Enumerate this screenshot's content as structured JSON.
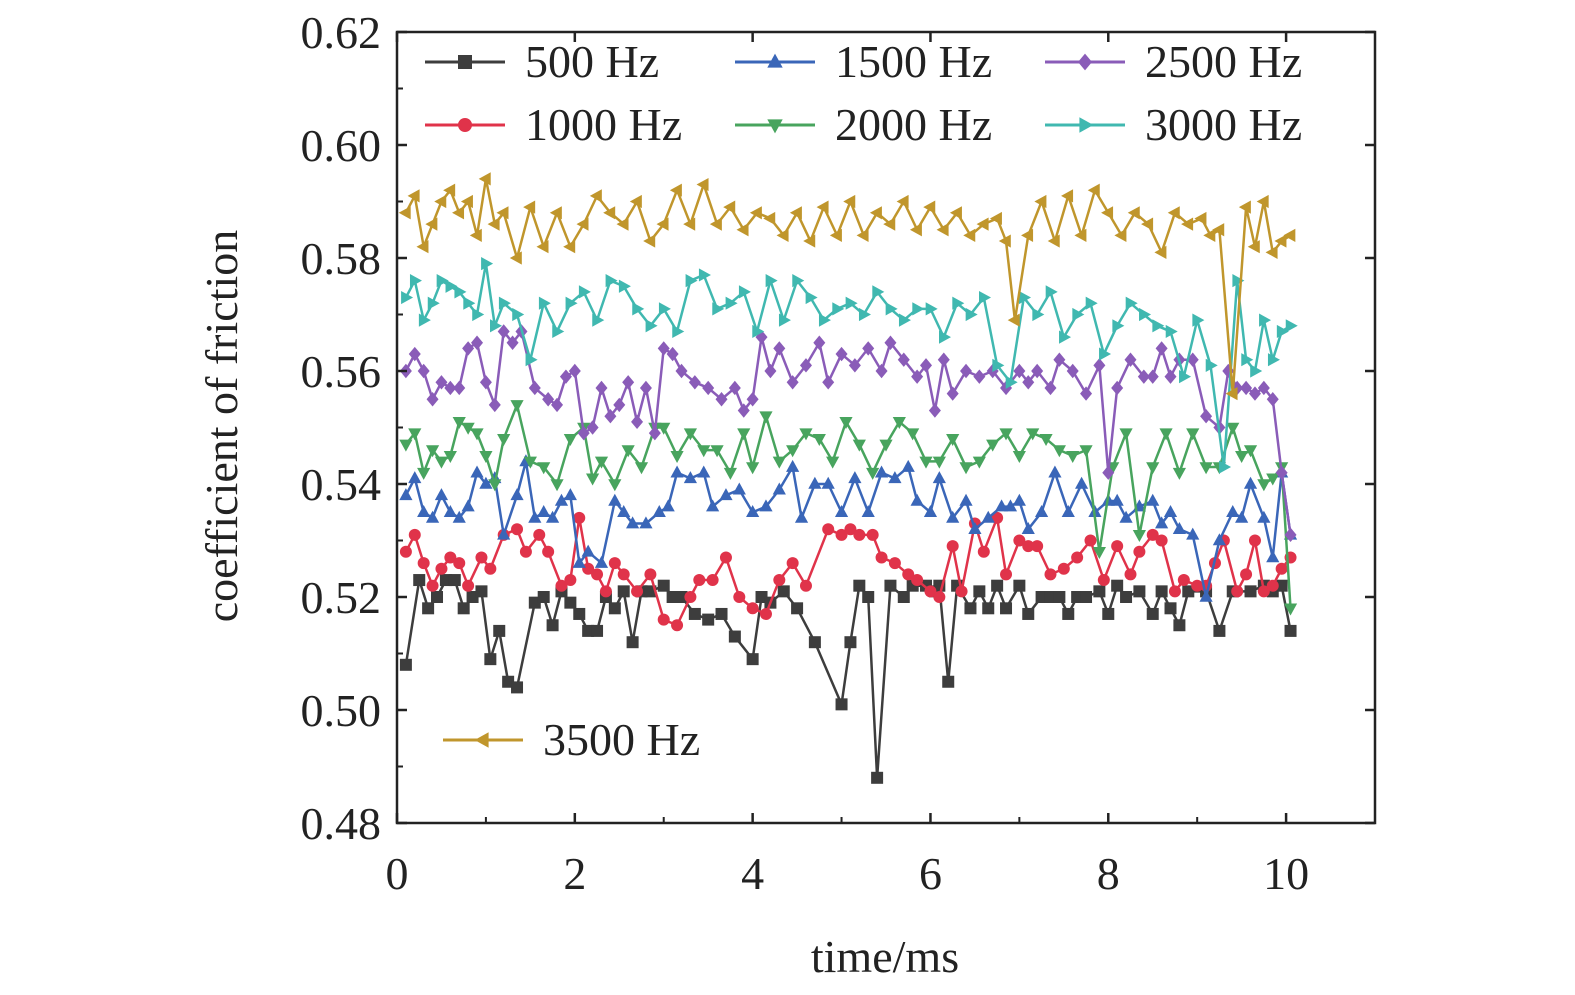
{
  "chart_data": {
    "type": "line",
    "title": "",
    "xlabel": "time/ms",
    "ylabel": "coefficient of friction",
    "xlim": [
      0,
      11
    ],
    "ylim": [
      0.48,
      0.62
    ],
    "xticks": [
      "0",
      "2",
      "4",
      "6",
      "8",
      "10"
    ],
    "yticks": [
      "0.48",
      "0.50",
      "0.52",
      "0.54",
      "0.56",
      "0.58",
      "0.60",
      "0.62"
    ],
    "grid": false,
    "legend_placement": "top",
    "series": [
      {
        "name": "500 Hz",
        "color": "#3d3d3d",
        "marker": "square",
        "x": [
          0.1,
          0.25,
          0.35,
          0.45,
          0.55,
          0.65,
          0.75,
          0.85,
          0.95,
          1.05,
          1.15,
          1.25,
          1.35,
          1.55,
          1.65,
          1.75,
          1.85,
          1.95,
          2.05,
          2.15,
          2.25,
          2.35,
          2.45,
          2.55,
          2.65,
          2.75,
          2.85,
          3.0,
          3.1,
          3.2,
          3.35,
          3.5,
          3.65,
          3.8,
          4.0,
          4.1,
          4.2,
          4.35,
          4.5,
          4.7,
          5.0,
          5.1,
          5.2,
          5.3,
          5.4,
          5.55,
          5.7,
          5.8,
          5.95,
          6.05,
          6.1,
          6.2,
          6.3,
          6.45,
          6.55,
          6.65,
          6.75,
          6.85,
          7.0,
          7.1,
          7.25,
          7.35,
          7.45,
          7.55,
          7.65,
          7.75,
          7.9,
          8.0,
          8.1,
          8.2,
          8.35,
          8.5,
          8.6,
          8.7,
          8.8,
          8.9,
          9.1,
          9.25,
          9.4,
          9.6,
          9.75,
          9.85,
          9.95,
          10.05
        ],
        "y": [
          0.508,
          0.523,
          0.518,
          0.52,
          0.523,
          0.523,
          0.518,
          0.52,
          0.521,
          0.509,
          0.514,
          0.505,
          0.504,
          0.519,
          0.52,
          0.515,
          0.521,
          0.519,
          0.517,
          0.514,
          0.514,
          0.52,
          0.518,
          0.521,
          0.512,
          0.521,
          0.521,
          0.522,
          0.52,
          0.52,
          0.517,
          0.516,
          0.517,
          0.513,
          0.509,
          0.52,
          0.519,
          0.521,
          0.518,
          0.512,
          0.501,
          0.512,
          0.522,
          0.52,
          0.488,
          0.522,
          0.52,
          0.522,
          0.522,
          0.521,
          0.522,
          0.505,
          0.522,
          0.518,
          0.521,
          0.518,
          0.522,
          0.518,
          0.522,
          0.517,
          0.52,
          0.52,
          0.52,
          0.517,
          0.52,
          0.52,
          0.521,
          0.517,
          0.522,
          0.52,
          0.521,
          0.517,
          0.521,
          0.518,
          0.515,
          0.521,
          0.521,
          0.514,
          0.521,
          0.521,
          0.522,
          0.521,
          0.522,
          0.514
        ]
      },
      {
        "name": "1000 Hz",
        "color": "#e0334a",
        "marker": "circle",
        "x": [
          0.1,
          0.2,
          0.3,
          0.4,
          0.5,
          0.6,
          0.7,
          0.8,
          0.95,
          1.05,
          1.2,
          1.35,
          1.45,
          1.6,
          1.7,
          1.85,
          1.95,
          2.05,
          2.15,
          2.25,
          2.35,
          2.45,
          2.55,
          2.7,
          2.85,
          3.0,
          3.15,
          3.3,
          3.4,
          3.55,
          3.7,
          3.85,
          4.0,
          4.15,
          4.3,
          4.45,
          4.6,
          4.85,
          5.0,
          5.1,
          5.2,
          5.35,
          5.45,
          5.6,
          5.75,
          5.85,
          6.0,
          6.1,
          6.25,
          6.35,
          6.5,
          6.6,
          6.75,
          6.85,
          7.0,
          7.1,
          7.2,
          7.35,
          7.5,
          7.65,
          7.8,
          7.95,
          8.1,
          8.25,
          8.35,
          8.5,
          8.6,
          8.75,
          8.85,
          9.0,
          9.1,
          9.2,
          9.3,
          9.45,
          9.55,
          9.65,
          9.75,
          9.85,
          9.95,
          10.05
        ],
        "y": [
          0.528,
          0.531,
          0.526,
          0.522,
          0.525,
          0.527,
          0.526,
          0.522,
          0.527,
          0.525,
          0.531,
          0.532,
          0.528,
          0.531,
          0.528,
          0.522,
          0.523,
          0.534,
          0.525,
          0.524,
          0.521,
          0.526,
          0.524,
          0.521,
          0.524,
          0.516,
          0.515,
          0.52,
          0.523,
          0.523,
          0.527,
          0.52,
          0.518,
          0.517,
          0.523,
          0.526,
          0.522,
          0.532,
          0.531,
          0.532,
          0.531,
          0.531,
          0.527,
          0.526,
          0.524,
          0.523,
          0.521,
          0.52,
          0.529,
          0.521,
          0.533,
          0.528,
          0.534,
          0.524,
          0.53,
          0.529,
          0.529,
          0.524,
          0.525,
          0.527,
          0.53,
          0.523,
          0.529,
          0.524,
          0.528,
          0.531,
          0.53,
          0.521,
          0.523,
          0.522,
          0.522,
          0.526,
          0.53,
          0.521,
          0.524,
          0.53,
          0.521,
          0.522,
          0.525,
          0.527
        ]
      },
      {
        "name": "1500 Hz",
        "color": "#3a66b8",
        "marker": "triangle-up",
        "x": [
          0.1,
          0.2,
          0.3,
          0.4,
          0.5,
          0.6,
          0.7,
          0.8,
          0.9,
          1.0,
          1.1,
          1.2,
          1.35,
          1.45,
          1.55,
          1.65,
          1.75,
          1.85,
          1.95,
          2.05,
          2.15,
          2.3,
          2.45,
          2.55,
          2.65,
          2.8,
          2.95,
          3.05,
          3.15,
          3.3,
          3.45,
          3.55,
          3.7,
          3.85,
          4.0,
          4.15,
          4.3,
          4.45,
          4.55,
          4.7,
          4.85,
          5.0,
          5.15,
          5.3,
          5.45,
          5.6,
          5.75,
          5.85,
          6.0,
          6.1,
          6.25,
          6.4,
          6.5,
          6.65,
          6.8,
          6.9,
          7.0,
          7.1,
          7.25,
          7.4,
          7.55,
          7.7,
          7.85,
          8.0,
          8.1,
          8.2,
          8.35,
          8.5,
          8.6,
          8.7,
          8.8,
          8.95,
          9.1,
          9.25,
          9.4,
          9.5,
          9.6,
          9.75,
          9.85,
          9.95,
          10.05
        ],
        "y": [
          0.538,
          0.541,
          0.535,
          0.534,
          0.538,
          0.535,
          0.534,
          0.536,
          0.542,
          0.54,
          0.541,
          0.531,
          0.538,
          0.544,
          0.534,
          0.535,
          0.534,
          0.537,
          0.538,
          0.526,
          0.528,
          0.526,
          0.537,
          0.535,
          0.533,
          0.533,
          0.535,
          0.536,
          0.542,
          0.541,
          0.542,
          0.536,
          0.538,
          0.539,
          0.535,
          0.536,
          0.539,
          0.543,
          0.534,
          0.54,
          0.54,
          0.535,
          0.541,
          0.535,
          0.542,
          0.541,
          0.543,
          0.537,
          0.535,
          0.541,
          0.534,
          0.537,
          0.532,
          0.534,
          0.536,
          0.536,
          0.537,
          0.532,
          0.535,
          0.542,
          0.535,
          0.54,
          0.535,
          0.537,
          0.537,
          0.534,
          0.536,
          0.537,
          0.533,
          0.535,
          0.532,
          0.531,
          0.52,
          0.53,
          0.535,
          0.534,
          0.54,
          0.534,
          0.527,
          0.542,
          0.531
        ]
      },
      {
        "name": "2000 Hz",
        "color": "#48a45e",
        "marker": "triangle-down",
        "x": [
          0.1,
          0.2,
          0.3,
          0.4,
          0.5,
          0.6,
          0.7,
          0.8,
          0.9,
          1.0,
          1.1,
          1.2,
          1.35,
          1.5,
          1.65,
          1.8,
          1.95,
          2.1,
          2.2,
          2.3,
          2.45,
          2.6,
          2.75,
          2.9,
          3.0,
          3.15,
          3.3,
          3.45,
          3.6,
          3.75,
          3.9,
          4.0,
          4.15,
          4.3,
          4.45,
          4.6,
          4.75,
          4.9,
          5.05,
          5.2,
          5.35,
          5.5,
          5.65,
          5.8,
          5.95,
          6.1,
          6.25,
          6.4,
          6.55,
          6.7,
          6.85,
          7.0,
          7.15,
          7.3,
          7.45,
          7.6,
          7.75,
          7.9,
          8.05,
          8.2,
          8.35,
          8.5,
          8.65,
          8.8,
          8.95,
          9.1,
          9.25,
          9.4,
          9.5,
          9.6,
          9.75,
          9.85,
          9.95,
          10.05
        ],
        "y": [
          0.547,
          0.549,
          0.542,
          0.546,
          0.544,
          0.545,
          0.551,
          0.55,
          0.549,
          0.545,
          0.54,
          0.548,
          0.554,
          0.544,
          0.543,
          0.54,
          0.548,
          0.55,
          0.541,
          0.544,
          0.54,
          0.546,
          0.543,
          0.55,
          0.55,
          0.545,
          0.549,
          0.546,
          0.546,
          0.542,
          0.549,
          0.543,
          0.552,
          0.544,
          0.546,
          0.549,
          0.548,
          0.544,
          0.551,
          0.547,
          0.542,
          0.547,
          0.551,
          0.549,
          0.544,
          0.544,
          0.548,
          0.543,
          0.544,
          0.547,
          0.549,
          0.545,
          0.549,
          0.548,
          0.546,
          0.545,
          0.546,
          0.528,
          0.543,
          0.549,
          0.531,
          0.543,
          0.549,
          0.542,
          0.549,
          0.543,
          0.543,
          0.55,
          0.545,
          0.546,
          0.54,
          0.541,
          0.543,
          0.518
        ]
      },
      {
        "name": "2500 Hz",
        "color": "#8a5cb8",
        "marker": "diamond",
        "x": [
          0.1,
          0.2,
          0.3,
          0.4,
          0.5,
          0.6,
          0.7,
          0.8,
          0.9,
          1.0,
          1.1,
          1.2,
          1.3,
          1.4,
          1.55,
          1.7,
          1.8,
          1.9,
          2.0,
          2.1,
          2.2,
          2.3,
          2.4,
          2.5,
          2.6,
          2.7,
          2.8,
          2.9,
          3.0,
          3.1,
          3.2,
          3.35,
          3.5,
          3.65,
          3.8,
          3.9,
          4.0,
          4.1,
          4.2,
          4.3,
          4.45,
          4.6,
          4.75,
          4.85,
          5.0,
          5.15,
          5.3,
          5.45,
          5.55,
          5.7,
          5.85,
          5.95,
          6.05,
          6.15,
          6.25,
          6.4,
          6.55,
          6.7,
          6.85,
          7.0,
          7.1,
          7.2,
          7.35,
          7.45,
          7.6,
          7.75,
          7.9,
          8.0,
          8.1,
          8.25,
          8.4,
          8.5,
          8.6,
          8.7,
          8.8,
          8.95,
          9.1,
          9.25,
          9.35,
          9.45,
          9.55,
          9.65,
          9.75,
          9.85,
          9.95,
          10.05
        ],
        "y": [
          0.56,
          0.563,
          0.56,
          0.555,
          0.558,
          0.557,
          0.557,
          0.564,
          0.565,
          0.558,
          0.554,
          0.567,
          0.565,
          0.567,
          0.557,
          0.555,
          0.554,
          0.559,
          0.56,
          0.549,
          0.55,
          0.557,
          0.552,
          0.554,
          0.558,
          0.551,
          0.557,
          0.549,
          0.564,
          0.563,
          0.56,
          0.558,
          0.557,
          0.555,
          0.557,
          0.553,
          0.555,
          0.566,
          0.56,
          0.564,
          0.558,
          0.561,
          0.565,
          0.558,
          0.563,
          0.561,
          0.564,
          0.56,
          0.565,
          0.562,
          0.559,
          0.561,
          0.553,
          0.562,
          0.556,
          0.56,
          0.559,
          0.56,
          0.557,
          0.56,
          0.558,
          0.56,
          0.557,
          0.562,
          0.56,
          0.556,
          0.561,
          0.542,
          0.557,
          0.562,
          0.559,
          0.559,
          0.564,
          0.559,
          0.562,
          0.562,
          0.552,
          0.55,
          0.56,
          0.557,
          0.557,
          0.556,
          0.557,
          0.555,
          0.542,
          0.531
        ]
      },
      {
        "name": "3000 Hz",
        "color": "#40b8b0",
        "marker": "triangle-right",
        "x": [
          0.1,
          0.2,
          0.3,
          0.4,
          0.5,
          0.6,
          0.7,
          0.8,
          0.9,
          1.0,
          1.1,
          1.2,
          1.35,
          1.5,
          1.65,
          1.8,
          1.95,
          2.1,
          2.25,
          2.4,
          2.55,
          2.7,
          2.85,
          3.0,
          3.15,
          3.3,
          3.45,
          3.6,
          3.75,
          3.9,
          4.05,
          4.2,
          4.35,
          4.5,
          4.65,
          4.8,
          4.95,
          5.1,
          5.25,
          5.4,
          5.55,
          5.7,
          5.85,
          6.0,
          6.15,
          6.3,
          6.45,
          6.6,
          6.75,
          6.9,
          7.05,
          7.2,
          7.35,
          7.5,
          7.65,
          7.8,
          7.95,
          8.1,
          8.25,
          8.4,
          8.55,
          8.7,
          8.85,
          9.0,
          9.15,
          9.3,
          9.45,
          9.55,
          9.65,
          9.75,
          9.85,
          9.95,
          10.05
        ],
        "y": [
          0.573,
          0.576,
          0.569,
          0.572,
          0.576,
          0.575,
          0.574,
          0.572,
          0.57,
          0.579,
          0.568,
          0.572,
          0.57,
          0.562,
          0.572,
          0.567,
          0.572,
          0.574,
          0.569,
          0.576,
          0.575,
          0.571,
          0.568,
          0.571,
          0.567,
          0.576,
          0.577,
          0.571,
          0.572,
          0.574,
          0.567,
          0.576,
          0.569,
          0.576,
          0.573,
          0.569,
          0.571,
          0.572,
          0.57,
          0.574,
          0.571,
          0.569,
          0.571,
          0.571,
          0.566,
          0.572,
          0.57,
          0.573,
          0.561,
          0.558,
          0.573,
          0.57,
          0.574,
          0.566,
          0.57,
          0.572,
          0.563,
          0.568,
          0.572,
          0.57,
          0.568,
          0.567,
          0.559,
          0.569,
          0.561,
          0.543,
          0.576,
          0.562,
          0.56,
          0.569,
          0.562,
          0.567,
          0.568
        ]
      },
      {
        "name": "3500 Hz",
        "color": "#c0962c",
        "marker": "triangle-left",
        "x": [
          0.1,
          0.2,
          0.3,
          0.4,
          0.5,
          0.6,
          0.7,
          0.8,
          0.9,
          1.0,
          1.1,
          1.2,
          1.35,
          1.5,
          1.65,
          1.8,
          1.95,
          2.1,
          2.25,
          2.4,
          2.55,
          2.7,
          2.85,
          3.0,
          3.15,
          3.3,
          3.45,
          3.6,
          3.75,
          3.9,
          4.05,
          4.2,
          4.35,
          4.5,
          4.65,
          4.8,
          4.95,
          5.1,
          5.25,
          5.4,
          5.55,
          5.7,
          5.85,
          6.0,
          6.15,
          6.3,
          6.45,
          6.6,
          6.75,
          6.85,
          6.95,
          7.1,
          7.25,
          7.4,
          7.55,
          7.7,
          7.85,
          8.0,
          8.15,
          8.3,
          8.45,
          8.6,
          8.75,
          8.9,
          9.05,
          9.15,
          9.25,
          9.4,
          9.55,
          9.65,
          9.75,
          9.85,
          9.95,
          10.05
        ],
        "y": [
          0.588,
          0.591,
          0.582,
          0.586,
          0.59,
          0.592,
          0.588,
          0.59,
          0.584,
          0.594,
          0.586,
          0.588,
          0.58,
          0.589,
          0.582,
          0.588,
          0.582,
          0.586,
          0.591,
          0.588,
          0.586,
          0.59,
          0.583,
          0.586,
          0.592,
          0.586,
          0.593,
          0.586,
          0.589,
          0.585,
          0.588,
          0.587,
          0.584,
          0.588,
          0.583,
          0.589,
          0.584,
          0.59,
          0.584,
          0.588,
          0.586,
          0.59,
          0.585,
          0.589,
          0.585,
          0.588,
          0.584,
          0.586,
          0.587,
          0.583,
          0.569,
          0.584,
          0.59,
          0.583,
          0.591,
          0.584,
          0.592,
          0.588,
          0.584,
          0.588,
          0.586,
          0.581,
          0.588,
          0.586,
          0.587,
          0.584,
          0.585,
          0.556,
          0.589,
          0.582,
          0.59,
          0.581,
          0.583,
          0.584
        ]
      }
    ]
  }
}
